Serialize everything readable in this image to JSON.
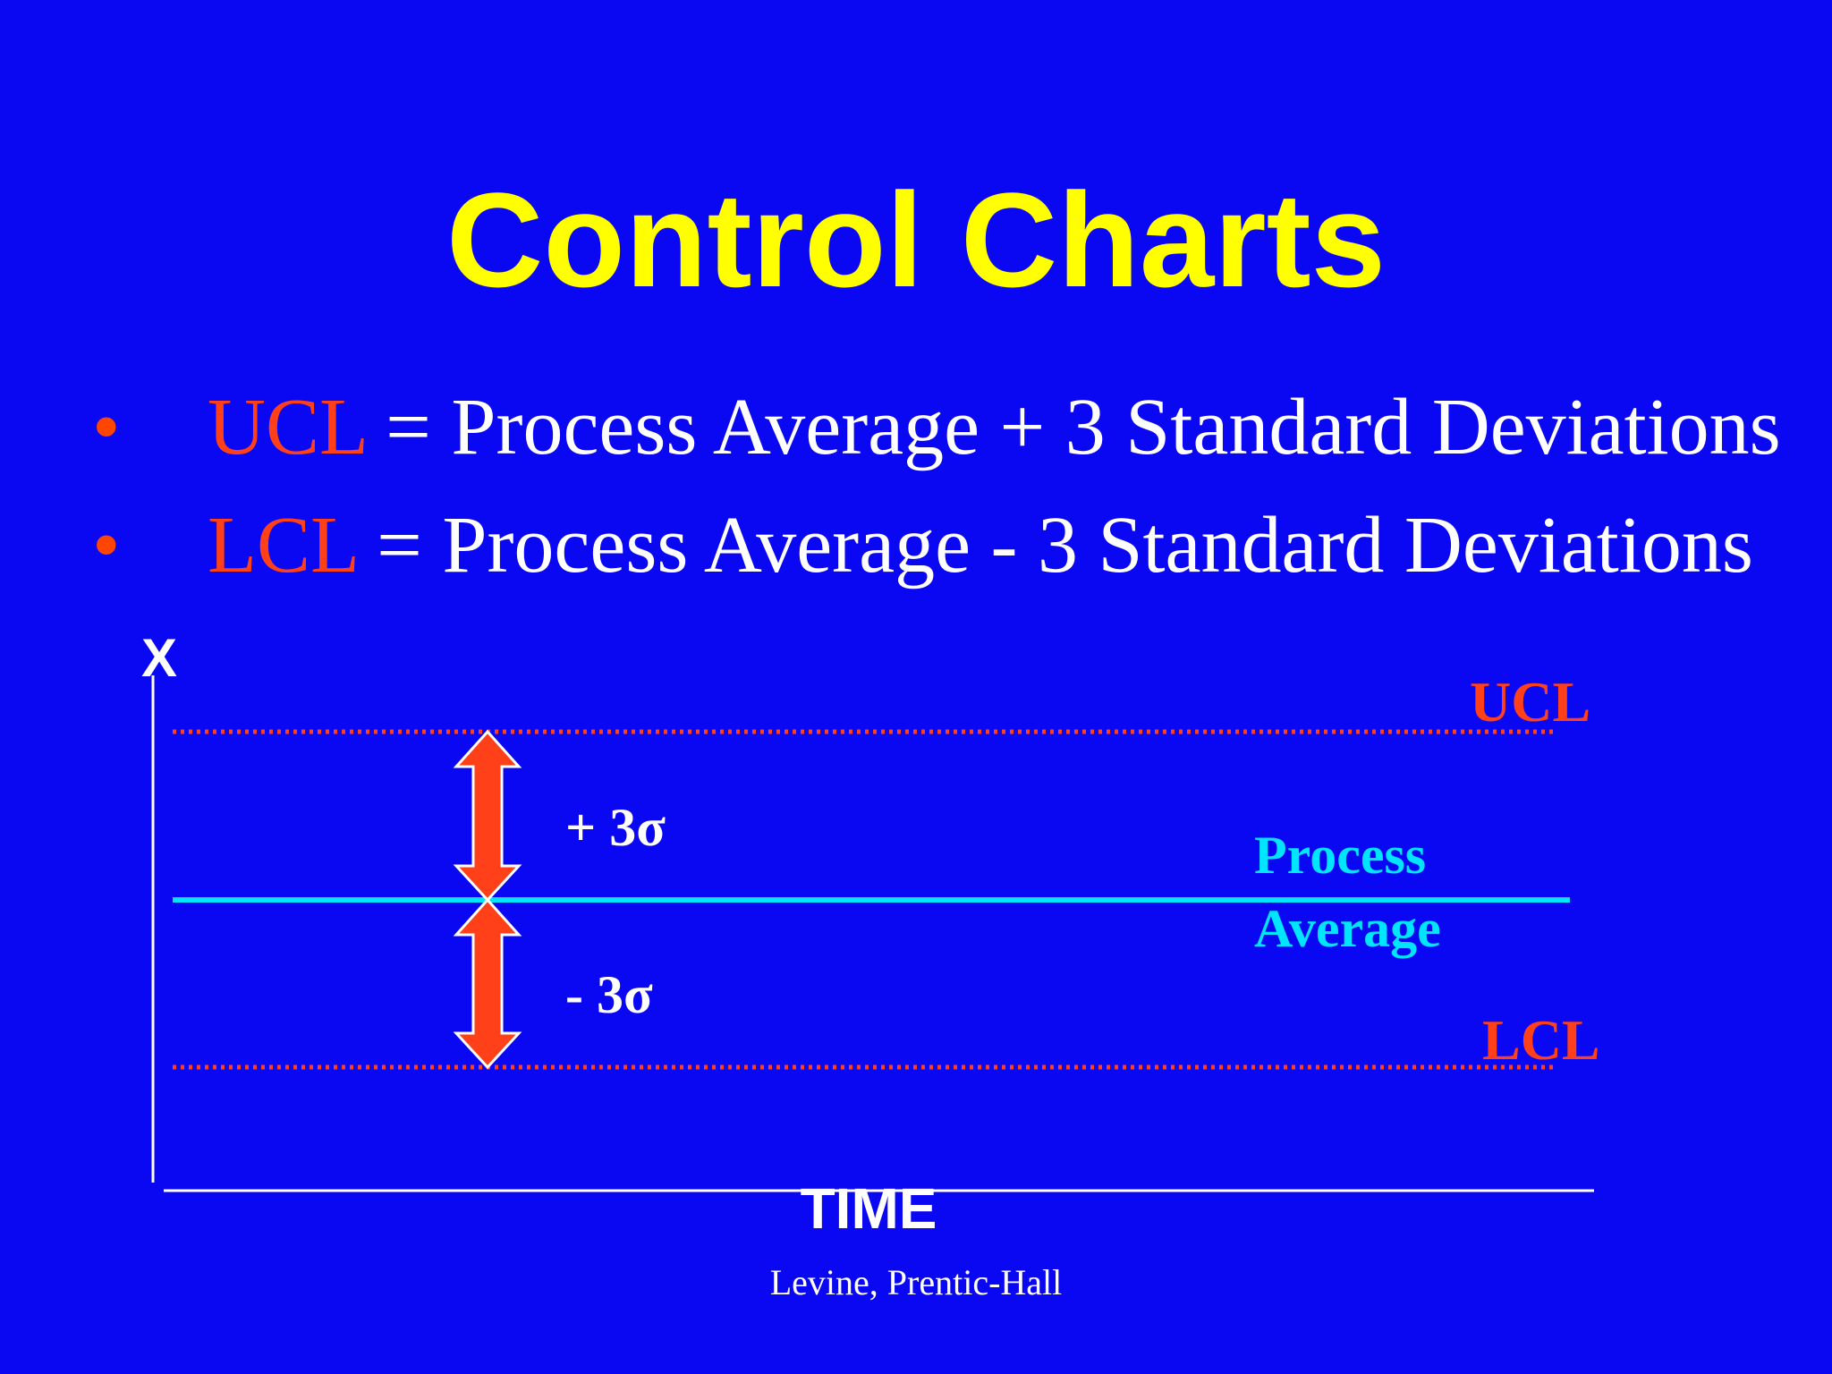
{
  "slide": {
    "title": "Control Charts",
    "bullets": [
      {
        "term": "UCL",
        "definition": " = Process Average + 3 Standard Deviations"
      },
      {
        "term": "LCL",
        "definition": " = Process Average - 3 Standard Deviations"
      }
    ],
    "bullet_symbol": "•",
    "source": "Levine, Prentic-Hall"
  },
  "diagram": {
    "y_axis_label": "X",
    "x_axis_label": "TIME",
    "ucl_label": "UCL",
    "lcl_label": "LCL",
    "center_label_line1": "Process",
    "center_label_line2": "Average",
    "upper_band_label": "+ 3σ",
    "lower_band_label": "- 3σ"
  },
  "colors": {
    "background": "#0a08f2",
    "title": "#ffff00",
    "limit": "#ff4018",
    "center_line": "#00e5ff",
    "text": "#ffffff"
  }
}
